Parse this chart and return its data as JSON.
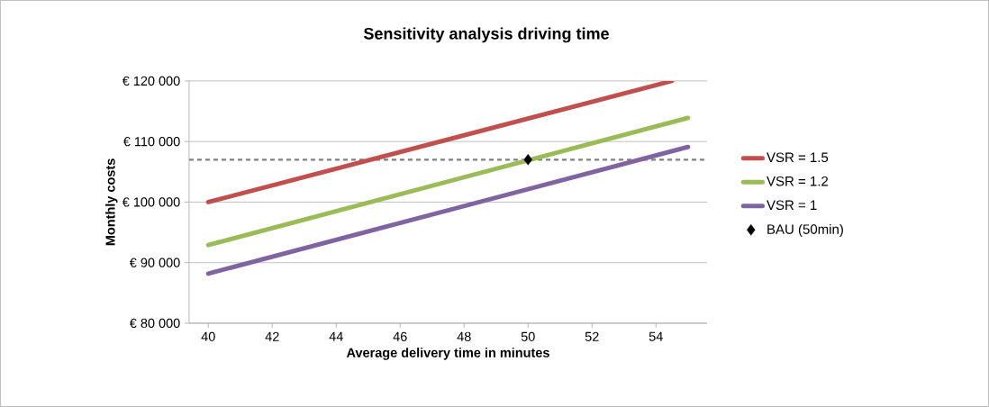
{
  "chart_data": {
    "type": "line",
    "title": "Sensitivity analysis driving time",
    "xlabel": "Average delivery time in minutes",
    "ylabel": "Monthly costs",
    "xlim": [
      39.4,
      55.6
    ],
    "xticks": [
      40,
      42,
      44,
      46,
      48,
      50,
      52,
      54
    ],
    "ylim": [
      80000,
      120000
    ],
    "yticks": [
      {
        "value": 80000,
        "label": "€ 80 000"
      },
      {
        "value": 90000,
        "label": "€ 90 000"
      },
      {
        "value": 100000,
        "label": "€ 100 000"
      },
      {
        "value": 110000,
        "label": "€ 110 000"
      },
      {
        "value": 120000,
        "label": "€ 120 000"
      }
    ],
    "grid": "y",
    "legend": "right",
    "series": [
      {
        "name": "VSR =  1.5",
        "color": "#c0504d",
        "x": [
          40,
          54.5
        ],
        "values": [
          100000,
          120000
        ]
      },
      {
        "name": "VSR =  1.2",
        "color": "#9bbb59",
        "x": [
          40,
          55
        ],
        "values": [
          92900,
          113900
        ]
      },
      {
        "name": "VSR = 1",
        "color": "#8064a2",
        "x": [
          40,
          55
        ],
        "values": [
          88200,
          109100
        ]
      },
      {
        "name": "BAU (50min)",
        "color": "#000000",
        "type": "scatter",
        "marker": "diamond",
        "x": [
          50
        ],
        "values": [
          107000
        ]
      }
    ],
    "ref_lines": [
      {
        "axis": "y",
        "value": 107000,
        "color": "#808080",
        "line_style": "dashed"
      }
    ]
  }
}
